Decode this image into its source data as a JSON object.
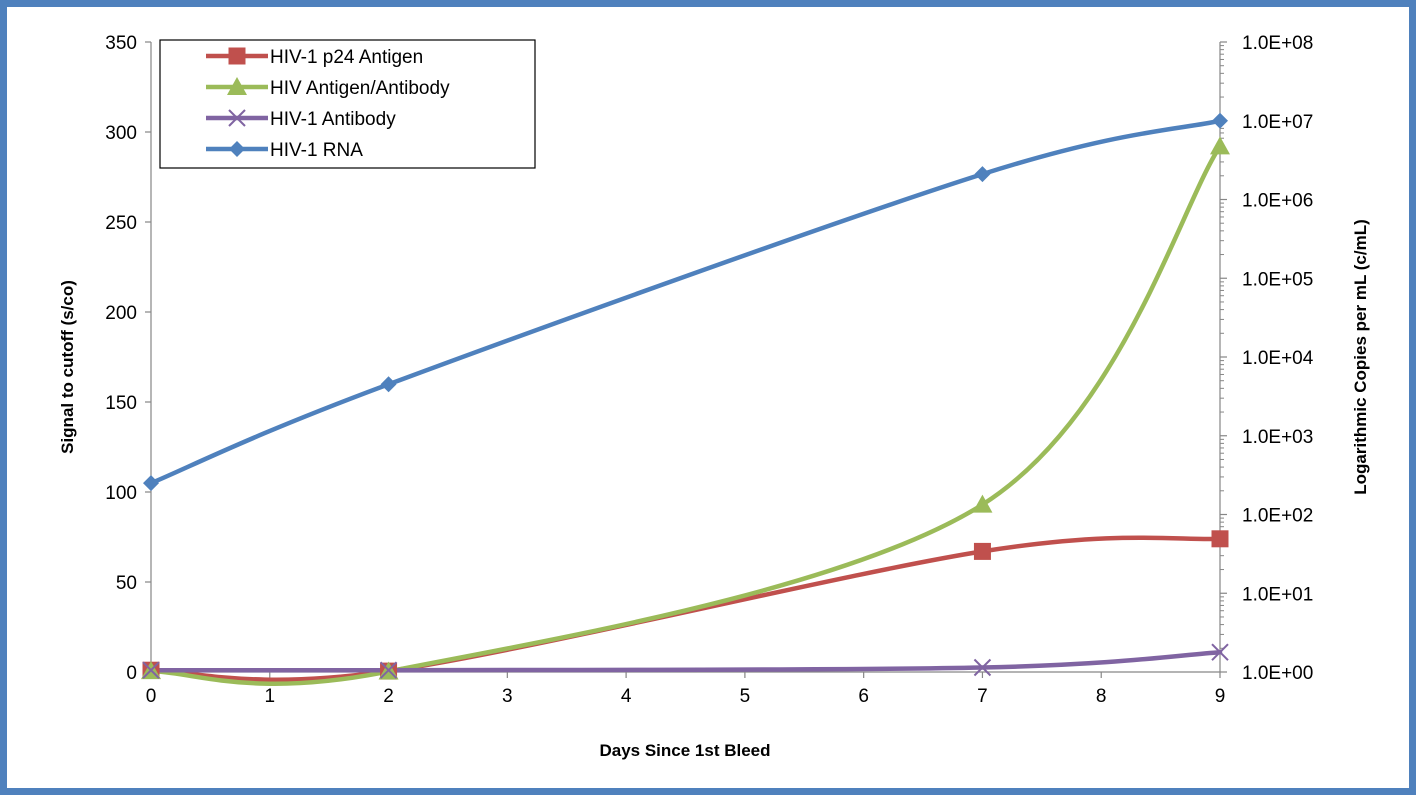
{
  "chart_data": {
    "type": "line",
    "title": "",
    "xlabel": "Days  Since  1st Bleed",
    "ylabel": "Signal  to cutoff (s/co)",
    "y2label": "Logarithmic Copies per mL (c/mL)",
    "x_ticks": [
      0,
      1,
      2,
      3,
      4,
      5,
      6,
      7,
      8,
      9
    ],
    "xlim": [
      0,
      9
    ],
    "ylim": [
      0,
      350
    ],
    "y_ticks": [
      0,
      50,
      100,
      150,
      200,
      250,
      300,
      350
    ],
    "y2_scale": "log",
    "y2lim": [
      1,
      100000000
    ],
    "y2_ticks": [
      "1.0E+00",
      "1.0E+01",
      "1.0E+02",
      "1.0E+03",
      "1.0E+04",
      "1.0E+05",
      "1.0E+06",
      "1.0E+07",
      "1.0E+08"
    ],
    "grid": false,
    "legend_position": "top-left",
    "smooth": true,
    "series": [
      {
        "name": "HIV-1 p24 Antigen",
        "axis": "left",
        "color": "#c0504d",
        "marker": "square",
        "x": [
          0,
          2,
          7,
          9
        ],
        "y": [
          1,
          0.5,
          67,
          74
        ]
      },
      {
        "name": "HIV Antigen/Antibody",
        "axis": "left",
        "color": "#9bbb59",
        "marker": "triangle",
        "x": [
          0,
          2,
          7,
          9
        ],
        "y": [
          0.5,
          0.3,
          93,
          292
        ]
      },
      {
        "name": "HIV-1 Antibody",
        "axis": "left",
        "color": "#8064a2",
        "marker": "x",
        "x": [
          0,
          2,
          7,
          9
        ],
        "y": [
          1,
          1,
          2.5,
          11
        ]
      },
      {
        "name": "HIV-1 RNA",
        "axis": "right",
        "color": "#4f81bd",
        "marker": "diamond",
        "x": [
          0,
          2,
          7,
          9
        ],
        "y": [
          250,
          4500,
          2100000,
          10000000
        ]
      }
    ]
  }
}
